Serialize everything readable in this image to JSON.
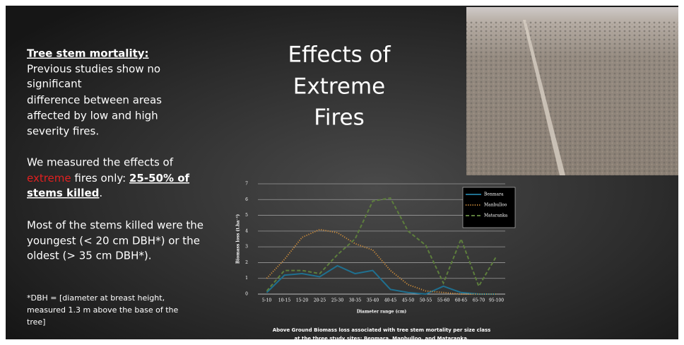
{
  "slide": {
    "title_lines": [
      "Effects of",
      "Extreme",
      "Fires"
    ],
    "heading": "Tree stem mortality:",
    "intro_lines": [
      "Previous studies show no",
      "significant",
      "difference between areas",
      "affected by low and high",
      "severity fires."
    ],
    "measured": {
      "line1": "We measured the effects of",
      "extreme": "extreme",
      "fires_only": " fires only: ",
      "killed_1": "25-50% of",
      "killed_2": "stems killed",
      "period": "."
    },
    "findings_lines": [
      "Most of the stems killed were the",
      "youngest (< 20 cm DBH*) or the",
      "oldest (> 35 cm DBH*)."
    ],
    "footnote_lines": [
      "*DBH = [diameter at breast height,",
      "measured 1.3 m above the base of the",
      "tree]"
    ],
    "caption_lines": [
      "Above Ground Biomass loss associated with tree stem mortality per size class",
      "at the three study sites: Benmara, Manbulloo, and Mataranka."
    ]
  },
  "chart_data": {
    "type": "line",
    "x_label": "Diameter range (cm)",
    "y_label": "Biomass loss (t.ha⁻¹)",
    "categories": [
      "5-10",
      "10-15",
      "15-20",
      "20-25",
      "25-30",
      "30-35",
      "35-40",
      "40-45",
      "45-50",
      "50-55",
      "55-60",
      "60-65",
      "65-70",
      "95-100"
    ],
    "series": [
      {
        "name": "Benmara",
        "color": "#1f7090",
        "style": "solid",
        "values": [
          0.1,
          1.2,
          1.3,
          1.1,
          1.8,
          1.3,
          1.5,
          0.3,
          0.1,
          0,
          0.5,
          0.1,
          0,
          0
        ]
      },
      {
        "name": "Manbulloo",
        "color": "#c98a3a",
        "style": "dotted",
        "values": [
          1.0,
          2.2,
          3.6,
          4.1,
          3.9,
          3.2,
          2.8,
          1.5,
          0.6,
          0.2,
          0.1,
          0,
          0,
          0
        ]
      },
      {
        "name": "Mataranka",
        "color": "#5d7e3c",
        "style": "dashed",
        "values": [
          0.2,
          1.5,
          1.5,
          1.3,
          2.5,
          3.5,
          5.9,
          6.1,
          4.0,
          3.1,
          0.7,
          3.5,
          0.5,
          2.4
        ]
      }
    ],
    "ylim": [
      0,
      7
    ],
    "yticks": [
      0,
      1,
      2,
      3,
      4,
      5,
      6,
      7
    ],
    "grid": true,
    "legend": "upper right"
  }
}
